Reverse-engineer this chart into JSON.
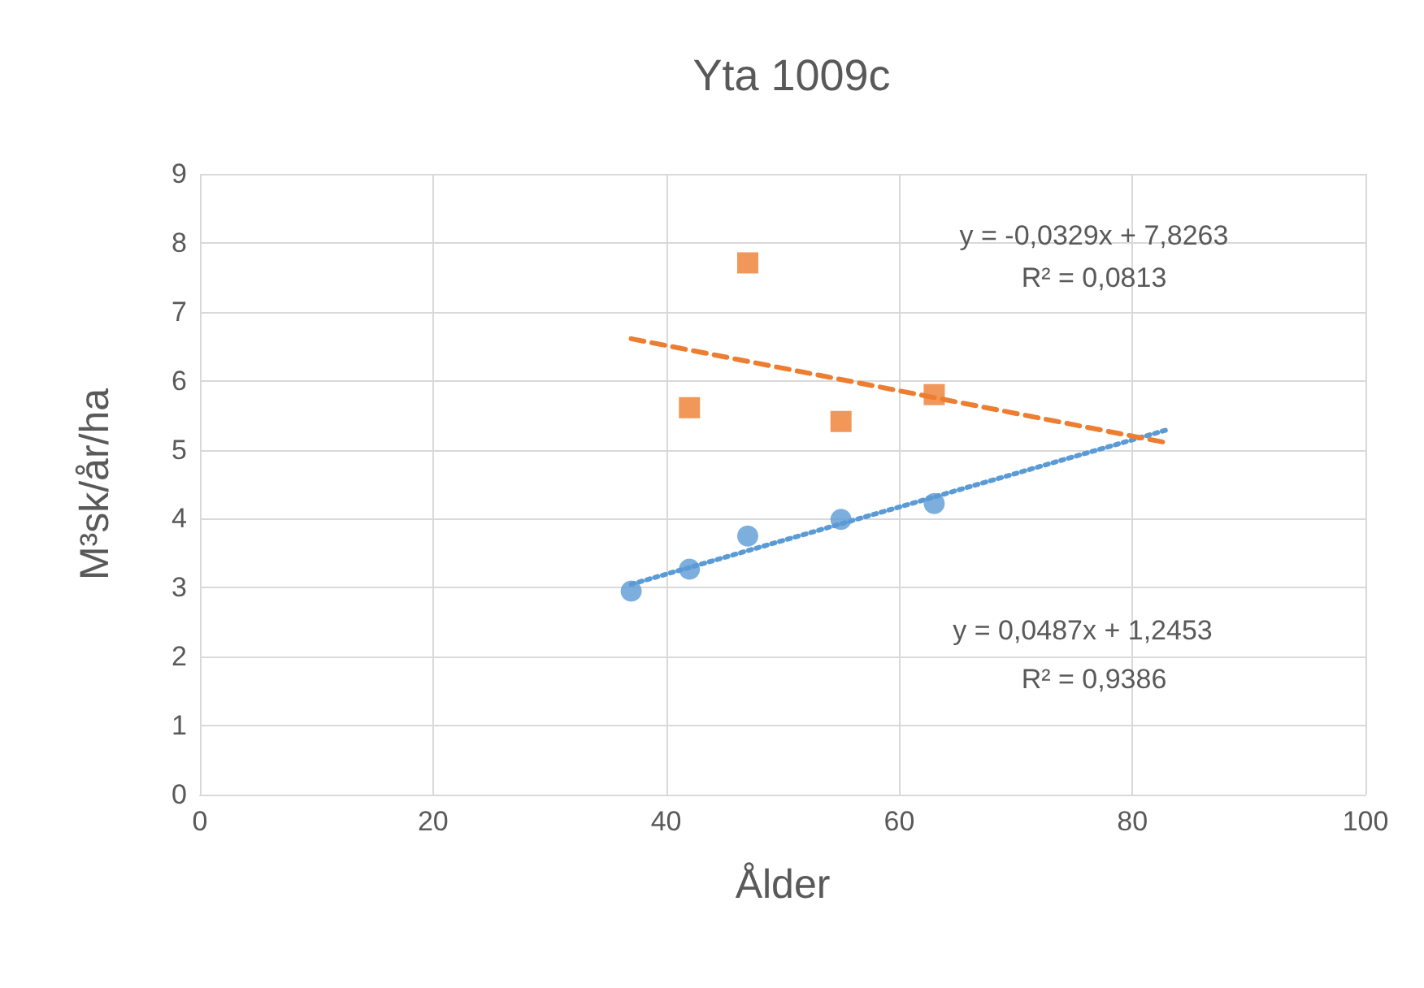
{
  "chart_data": {
    "type": "scatter",
    "title": "Yta 1009c",
    "xlabel": "Ålder",
    "ylabel": "M³sk/år/ha",
    "xlim": [
      0,
      100
    ],
    "xticks": [
      0,
      20,
      40,
      60,
      80,
      100
    ],
    "ylim": [
      0,
      9
    ],
    "yticks": [
      0,
      1,
      2,
      3,
      4,
      5,
      6,
      7,
      8,
      9
    ],
    "grid": true,
    "series": [
      {
        "type": "scatter",
        "color": "#5b9bd5",
        "marker": "circle",
        "x": [
          37,
          42,
          47,
          55,
          63
        ],
        "values": [
          2.95,
          3.27,
          3.75,
          3.99,
          4.22
        ]
      },
      {
        "type": "scatter",
        "color": "#ed7d31",
        "marker": "square",
        "x": [
          42,
          47,
          55,
          63
        ],
        "values": [
          5.61,
          7.71,
          5.41,
          5.8
        ]
      },
      {
        "type": "line",
        "color": "#5b9bd5",
        "line_style": "dotted",
        "marker": "none",
        "x": [
          37,
          83
        ],
        "values": [
          3.05,
          5.29
        ]
      },
      {
        "type": "line",
        "color": "#ed7d31",
        "line_style": "dashed",
        "marker": "none",
        "x": [
          37,
          83
        ],
        "values": [
          6.61,
          5.1
        ]
      }
    ],
    "annotations": [
      "y = -0,0329x + 7,8263",
      "R² = 0,0813",
      "y = 0,0487x + 1,2453",
      "R² = 0,9386"
    ]
  }
}
